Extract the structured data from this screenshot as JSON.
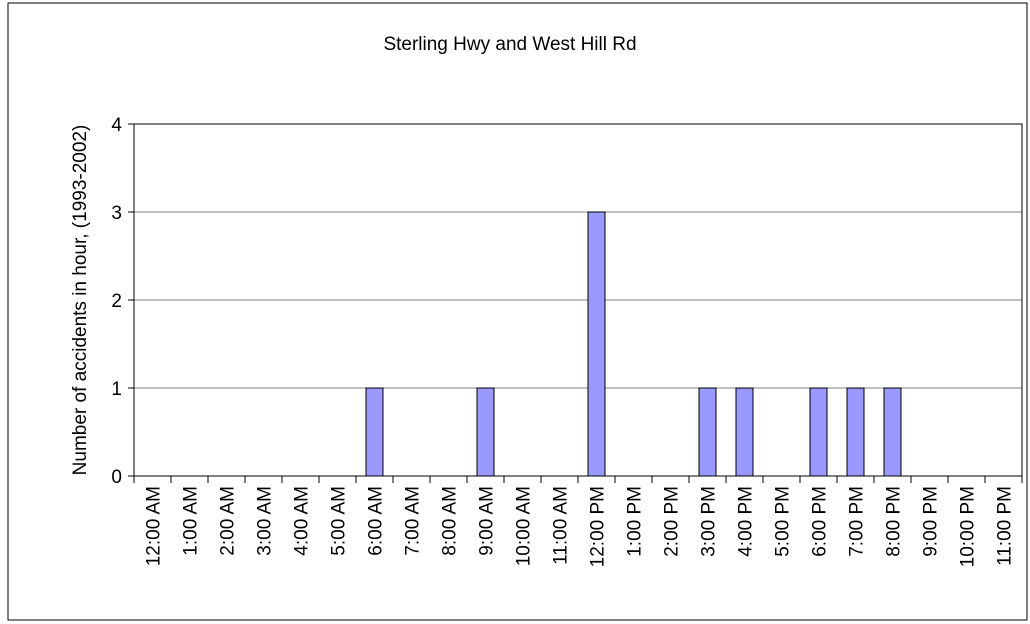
{
  "chart_data": {
    "type": "bar",
    "title": "Sterling Hwy and West Hill Rd",
    "y_label": "Number of accidents in hour, (1993-2002)",
    "categories": [
      "12:00 AM",
      "1:00 AM",
      "2:00 AM",
      "3:00 AM",
      "4:00 AM",
      "5:00 AM",
      "6:00 AM",
      "7:00 AM",
      "8:00 AM",
      "9:00 AM",
      "10:00 AM",
      "11:00 AM",
      "12:00 PM",
      "1:00 PM",
      "2:00 PM",
      "3:00 PM",
      "4:00 PM",
      "5:00 PM",
      "6:00 PM",
      "7:00 PM",
      "8:00 PM",
      "9:00 PM",
      "10:00 PM",
      "11:00 PM"
    ],
    "values": [
      0,
      0,
      0,
      0,
      0,
      0,
      1,
      0,
      0,
      1,
      0,
      0,
      3,
      0,
      0,
      1,
      1,
      0,
      1,
      1,
      1,
      0,
      0,
      0
    ],
    "color": "#9999ff",
    "ylim": [
      0,
      4
    ],
    "yticks": [
      0,
      1,
      2,
      3,
      4
    ],
    "grid": true
  }
}
